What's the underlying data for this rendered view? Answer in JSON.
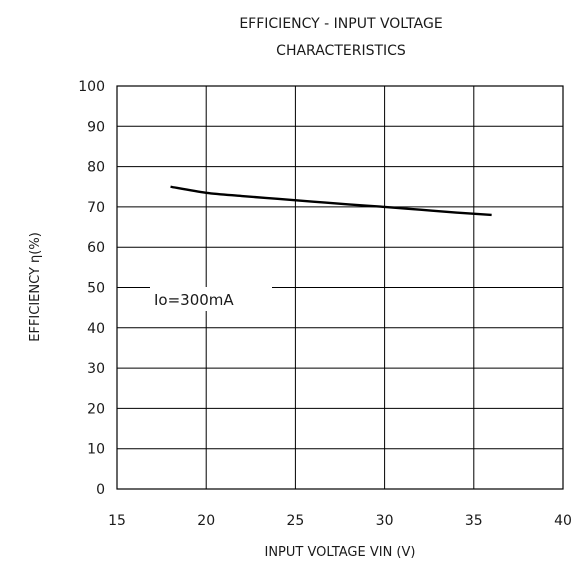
{
  "chart_data": {
    "type": "line",
    "title_line1": "EFFICIENCY - INPUT VOLTAGE",
    "title_line2": "CHARACTERISTICS",
    "xlabel": "INPUT VOLTAGE VIN (V)",
    "ylabel": "EFFICIENCY η(%)",
    "xlim": [
      15,
      40
    ],
    "ylim": [
      0,
      100
    ],
    "x_ticks": [
      15,
      20,
      25,
      30,
      35,
      40
    ],
    "y_ticks": [
      0,
      10,
      20,
      30,
      40,
      50,
      60,
      70,
      80,
      90,
      100
    ],
    "grid": true,
    "annotation": "Io=300mA",
    "series": [
      {
        "x": [
          18,
          20,
          22,
          24,
          26,
          28,
          30,
          32,
          34,
          36
        ],
        "y": [
          75,
          73.5,
          72.7,
          72,
          71.3,
          70.6,
          70,
          69.3,
          68.6,
          68
        ]
      }
    ],
    "colors": {
      "line": "#000000",
      "grid": "#000000",
      "text": "#1a1a1a"
    }
  }
}
